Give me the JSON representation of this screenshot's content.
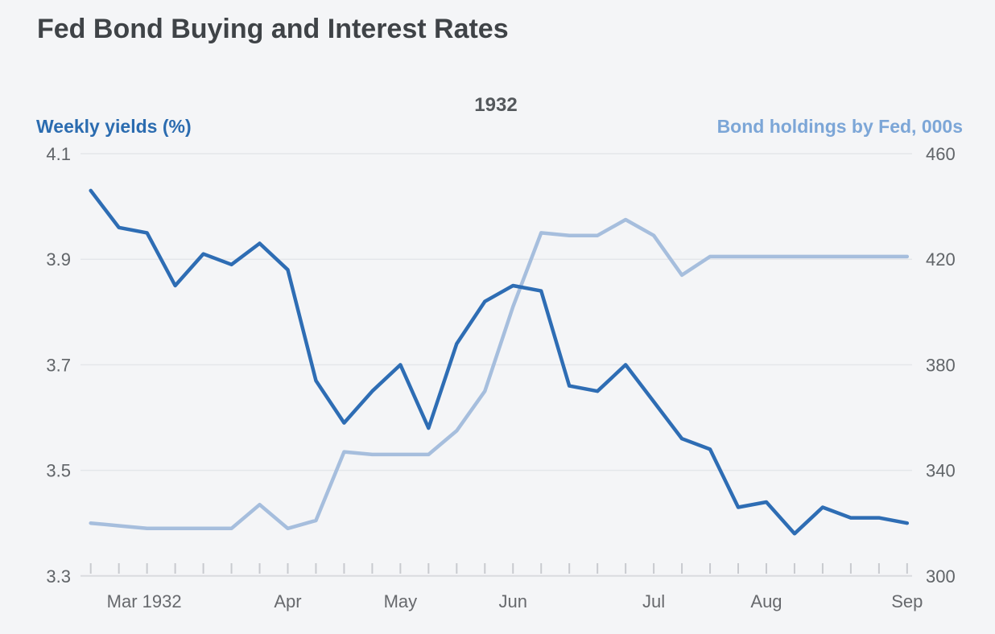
{
  "title": "Fed Bond Buying and Interest Rates",
  "subtitle": "1932",
  "left_axis": {
    "label": "Weekly yields (%)",
    "tick_labels": [
      "4.1",
      "3.9",
      "3.7",
      "3.5",
      "3.3"
    ],
    "min": 3.3,
    "max": 4.1,
    "label_color": "#2b6cb0"
  },
  "right_axis": {
    "label": "Bond holdings by Fed, 000s",
    "tick_labels": [
      "460",
      "420",
      "380",
      "340",
      "300"
    ],
    "min": 300,
    "max": 460,
    "label_color": "#7ca6d7"
  },
  "x_axis": {
    "weeks": 30,
    "month_labels": [
      {
        "label": "Mar 1932",
        "week": 2.9
      },
      {
        "label": "Apr",
        "week": 8.0
      },
      {
        "label": "May",
        "week": 12.0
      },
      {
        "label": "Jun",
        "week": 16.0
      },
      {
        "label": "Jul",
        "week": 21.0
      },
      {
        "label": "Aug",
        "week": 25.0
      },
      {
        "label": "Sep",
        "week": 30.0
      }
    ]
  },
  "chart_data": {
    "type": "line",
    "title": "Fed Bond Buying and Interest Rates",
    "subtitle": "1932",
    "x": [
      1,
      2,
      3,
      4,
      5,
      6,
      7,
      8,
      9,
      10,
      11,
      12,
      13,
      14,
      15,
      16,
      17,
      18,
      19,
      20,
      21,
      22,
      23,
      24,
      25,
      26,
      27,
      28,
      29,
      30
    ],
    "x_unit": "week (late Feb 1932 through mid Sep 1932)",
    "x_tick_labels": [
      "Mar 1932",
      "Apr",
      "May",
      "Jun",
      "Jul",
      "Aug",
      "Sep"
    ],
    "grid": true,
    "series": [
      {
        "name": "Weekly yields (%)",
        "axis": "left",
        "ylim": [
          3.3,
          4.1
        ],
        "color": "#2e6db4",
        "values": [
          4.03,
          3.96,
          3.95,
          3.85,
          3.91,
          3.89,
          3.93,
          3.88,
          3.67,
          3.59,
          3.65,
          3.7,
          3.58,
          3.74,
          3.82,
          3.85,
          3.84,
          3.66,
          3.65,
          3.7,
          3.63,
          3.56,
          3.54,
          3.43,
          3.44,
          3.38,
          3.43,
          3.41,
          3.41,
          3.4
        ]
      },
      {
        "name": "Bond holdings by Fed, 000s",
        "axis": "right",
        "ylim": [
          300,
          460
        ],
        "color": "#a6bedd",
        "values": [
          320,
          319,
          318,
          318,
          318,
          318,
          327,
          318,
          321,
          347,
          346,
          346,
          346,
          355,
          370,
          402,
          430,
          429,
          429,
          435,
          429,
          414,
          421,
          421,
          421,
          421,
          421,
          421,
          421,
          421
        ]
      }
    ]
  },
  "colors": {
    "background": "#f4f5f7",
    "gridline": "#e4e6ea",
    "axis_line": "#d9dbdf",
    "tick_mark": "#c8cacf",
    "yields_line": "#2e6db4",
    "holdings_line": "#a6bedd"
  }
}
